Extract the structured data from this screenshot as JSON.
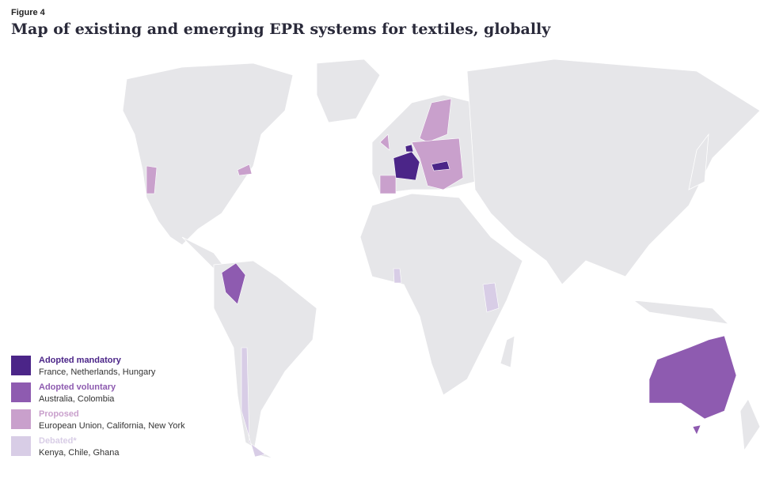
{
  "header": {
    "figure": "Figure 4",
    "title": "Map of existing and emerging EPR systems for textiles, globally"
  },
  "legend": [
    {
      "name": "Adopted mandatory",
      "color": "#4b2588",
      "members": "France, Netherlands, Hungary"
    },
    {
      "name": "Adopted voluntary",
      "color": "#8e5bb0",
      "members": "Australia, Colombia"
    },
    {
      "name": "Proposed",
      "color": "#c9a0cc",
      "members": "European Union, California, New York"
    },
    {
      "name": "Debated*",
      "color": "#d8cde6",
      "members": "Kenya, Chile, Ghana"
    }
  ]
}
